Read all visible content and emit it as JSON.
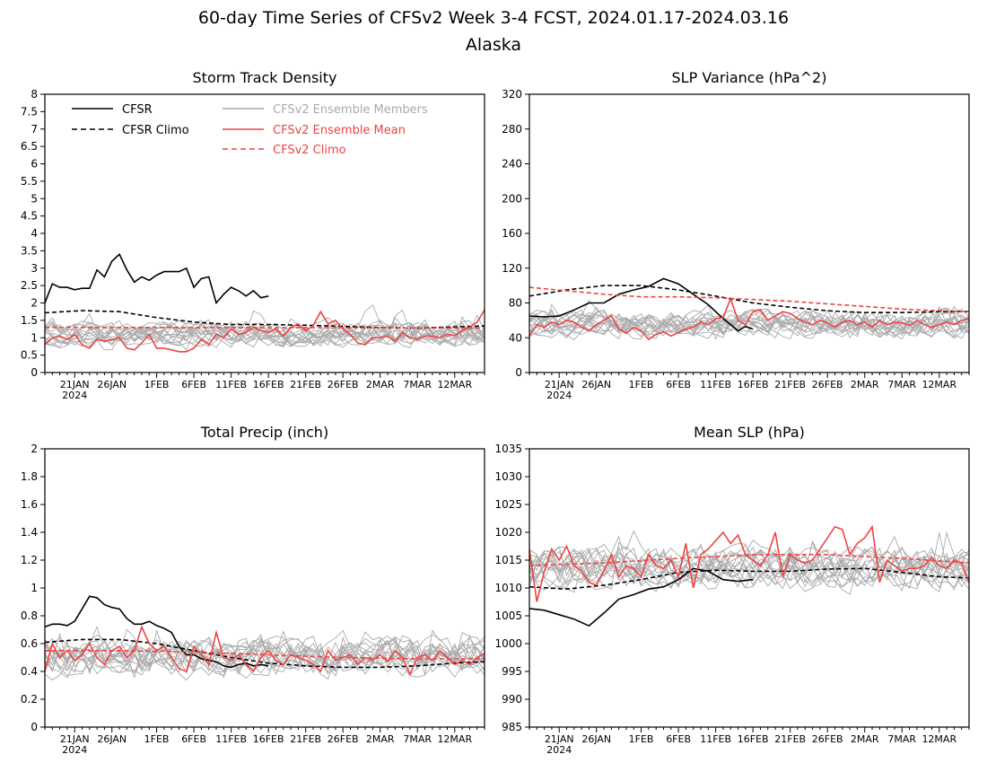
{
  "page": {
    "title": "60-day Time Series of CFSv2 Week 3-4 FCST, 2024.01.17-2024.03.16",
    "subtitle": "Alaska"
  },
  "colors": {
    "cfsr": "#000000",
    "ens_member": "#aaaaaa",
    "ens_mean": "#ee4444",
    "cfsv2_climo": "#ee4444"
  },
  "legend": [
    {
      "label": "CFSR",
      "style": "solid",
      "color": "#000000"
    },
    {
      "label": "CFSR Climo",
      "style": "dashed",
      "color": "#000000"
    },
    {
      "label": "CFSv2 Ensemble Members",
      "style": "solid",
      "color": "#aaaaaa"
    },
    {
      "label": "CFSv2 Ensemble Mean",
      "style": "solid",
      "color": "#ee4444"
    },
    {
      "label": "CFSv2 Climo",
      "style": "dashed",
      "color": "#ee4444"
    }
  ],
  "x_ticks": {
    "labels": [
      "21JAN",
      "26JAN",
      "1FEB",
      "6FEB",
      "11FEB",
      "16FEB",
      "21FEB",
      "26FEB",
      "2MAR",
      "7MAR",
      "12MAR"
    ],
    "days": [
      4,
      9,
      15,
      20,
      25,
      30,
      35,
      40,
      45,
      50,
      55
    ],
    "year_label": "2024"
  },
  "chart_data": [
    {
      "type": "line",
      "title": "Storm Track Density",
      "ylim": [
        0,
        8
      ],
      "yticks": [
        "0",
        "0.5",
        "1",
        "1.5",
        "2",
        "2.5",
        "3",
        "3.5",
        "4",
        "4.5",
        "5",
        "5.5",
        "6",
        "6.5",
        "7",
        "7.5",
        "8"
      ],
      "member_band": {
        "center": 1.1,
        "spread": 0.5,
        "ens_count": 16
      },
      "series": [
        {
          "name": "CFSR",
          "style": "solid",
          "color": "#000000",
          "x": [
            0,
            1,
            2,
            3,
            4,
            5,
            6,
            7,
            8,
            9,
            10,
            11,
            12,
            13,
            14,
            15,
            16,
            17,
            18,
            19,
            20,
            21,
            22,
            23,
            24,
            25,
            26,
            27,
            28,
            29,
            30
          ],
          "values": [
            2.0,
            2.55,
            2.45,
            2.45,
            2.38,
            2.42,
            2.42,
            2.95,
            2.75,
            3.2,
            3.4,
            2.95,
            2.6,
            2.75,
            2.65,
            2.8,
            2.9,
            2.9,
            2.9,
            3.0,
            2.45,
            2.7,
            2.75,
            2.0,
            2.25,
            2.45,
            2.35,
            2.2,
            2.35,
            2.15,
            2.2
          ]
        },
        {
          "name": "CFSR Climo",
          "style": "dashed",
          "color": "#000000",
          "x": [
            0,
            5,
            10,
            15,
            20,
            25,
            30,
            35,
            40,
            45,
            50,
            55,
            59
          ],
          "values": [
            1.72,
            1.78,
            1.75,
            1.58,
            1.45,
            1.38,
            1.38,
            1.36,
            1.33,
            1.29,
            1.28,
            1.31,
            1.34
          ]
        },
        {
          "name": "CFSv2 Ensemble Mean",
          "style": "solid",
          "color": "#ee4444",
          "x": [
            0,
            1,
            2,
            3,
            4,
            5,
            6,
            7,
            8,
            9,
            10,
            11,
            12,
            13,
            14,
            15,
            16,
            17,
            18,
            19,
            20,
            21,
            22,
            23,
            24,
            25,
            26,
            27,
            28,
            29,
            30,
            31,
            32,
            33,
            34,
            35,
            36,
            37,
            38,
            39,
            40,
            41,
            42,
            43,
            44,
            45,
            46,
            47,
            48,
            49,
            50,
            51,
            52,
            53,
            54,
            55,
            56,
            57,
            58,
            59
          ],
          "values": [
            0.8,
            1.0,
            1.05,
            0.95,
            1.1,
            0.8,
            0.7,
            0.95,
            0.9,
            0.95,
            1.0,
            0.7,
            0.65,
            0.85,
            1.1,
            0.7,
            0.7,
            0.65,
            0.6,
            0.6,
            0.7,
            0.95,
            0.8,
            1.1,
            1.0,
            1.25,
            1.1,
            1.15,
            1.3,
            1.2,
            1.15,
            1.25,
            1.05,
            1.3,
            1.4,
            1.2,
            1.35,
            1.75,
            1.4,
            1.5,
            1.25,
            1.1,
            0.85,
            0.8,
            1.0,
            1.0,
            1.05,
            0.9,
            1.15,
            1.0,
            0.95,
            1.05,
            1.05,
            1.0,
            1.1,
            1.05,
            1.2,
            1.3,
            1.45,
            1.8
          ]
        },
        {
          "name": "CFSv2 Climo",
          "style": "dashed",
          "color": "#ee4444",
          "x": [
            0,
            59
          ],
          "values": [
            1.3,
            1.28
          ]
        }
      ]
    },
    {
      "type": "line",
      "title": "SLP Variance (hPa^2)",
      "ylim": [
        0,
        320
      ],
      "yticks": [
        "0",
        "40",
        "80",
        "120",
        "160",
        "200",
        "240",
        "280",
        "320"
      ],
      "member_band": {
        "center": 55,
        "spread": 22,
        "ens_count": 16
      },
      "series": [
        {
          "name": "CFSR",
          "style": "solid",
          "color": "#000000",
          "x": [
            0,
            2,
            4,
            6,
            8,
            10,
            12,
            14,
            16,
            18,
            20,
            22,
            24,
            26,
            28,
            29,
            30
          ],
          "values": [
            65,
            64,
            65,
            72,
            80,
            80,
            90,
            95,
            99,
            108,
            102,
            90,
            78,
            62,
            48,
            53,
            50
          ]
        },
        {
          "name": "CFSR Climo",
          "style": "dashed",
          "color": "#000000",
          "x": [
            0,
            5,
            10,
            15,
            20,
            25,
            30,
            35,
            40,
            45,
            50,
            55,
            59
          ],
          "values": [
            88,
            95,
            100,
            100,
            95,
            88,
            80,
            75,
            71,
            69,
            69,
            70,
            70
          ]
        },
        {
          "name": "CFSv2 Ensemble Mean",
          "style": "solid",
          "color": "#ee4444",
          "x": [
            0,
            1,
            2,
            3,
            4,
            5,
            6,
            7,
            8,
            9,
            10,
            11,
            12,
            13,
            14,
            15,
            16,
            17,
            18,
            19,
            20,
            21,
            22,
            23,
            24,
            25,
            26,
            27,
            28,
            29,
            30,
            31,
            32,
            33,
            34,
            35,
            36,
            37,
            38,
            39,
            40,
            41,
            42,
            43,
            44,
            45,
            46,
            47,
            48,
            49,
            50,
            51,
            52,
            53,
            54,
            55,
            56,
            57,
            58,
            59
          ],
          "values": [
            42,
            55,
            52,
            58,
            55,
            60,
            58,
            52,
            48,
            55,
            60,
            65,
            50,
            45,
            52,
            48,
            38,
            44,
            47,
            42,
            46,
            50,
            52,
            58,
            55,
            62,
            63,
            85,
            60,
            55,
            70,
            72,
            60,
            65,
            70,
            68,
            62,
            58,
            55,
            60,
            57,
            52,
            58,
            60,
            55,
            58,
            52,
            60,
            55,
            58,
            57,
            54,
            60,
            55,
            52,
            55,
            58,
            55,
            60,
            62
          ]
        },
        {
          "name": "CFSv2 Climo",
          "style": "dashed",
          "color": "#ee4444",
          "x": [
            0,
            5,
            10,
            15,
            20,
            25,
            30,
            35,
            40,
            45,
            50,
            55,
            59
          ],
          "values": [
            98,
            94,
            90,
            87,
            87,
            86,
            84,
            82,
            79,
            76,
            73,
            71,
            70
          ]
        }
      ]
    },
    {
      "type": "line",
      "title": "Total Precip (inch)",
      "ylim": [
        0,
        2
      ],
      "yticks": [
        "0",
        "0.2",
        "0.4",
        "0.6",
        "0.8",
        "1",
        "1.2",
        "1.4",
        "1.6",
        "1.8",
        "2"
      ],
      "member_band": {
        "center": 0.5,
        "spread": 0.2,
        "ens_count": 16
      },
      "series": [
        {
          "name": "CFSR",
          "style": "solid",
          "color": "#000000",
          "x": [
            0,
            1,
            2,
            3,
            4,
            5,
            6,
            7,
            8,
            9,
            10,
            11,
            12,
            13,
            14,
            15,
            16,
            17,
            18,
            19,
            20,
            21,
            22,
            23,
            24,
            25,
            26,
            27,
            28,
            29,
            30
          ],
          "values": [
            0.72,
            0.74,
            0.74,
            0.73,
            0.76,
            0.85,
            0.94,
            0.93,
            0.88,
            0.86,
            0.85,
            0.78,
            0.74,
            0.74,
            0.76,
            0.73,
            0.71,
            0.68,
            0.58,
            0.52,
            0.52,
            0.49,
            0.48,
            0.47,
            0.44,
            0.43,
            0.45,
            0.46,
            0.44,
            0.45,
            0.44
          ]
        },
        {
          "name": "CFSR Climo",
          "style": "dashed",
          "color": "#000000",
          "x": [
            0,
            5,
            10,
            15,
            20,
            25,
            30,
            35,
            40,
            45,
            50,
            55,
            59
          ],
          "values": [
            0.61,
            0.63,
            0.63,
            0.6,
            0.55,
            0.5,
            0.46,
            0.44,
            0.43,
            0.43,
            0.44,
            0.46,
            0.47
          ]
        },
        {
          "name": "CFSv2 Ensemble Mean",
          "style": "solid",
          "color": "#ee4444",
          "x": [
            0,
            1,
            2,
            3,
            4,
            5,
            6,
            7,
            8,
            9,
            10,
            11,
            12,
            13,
            14,
            15,
            16,
            17,
            18,
            19,
            20,
            21,
            22,
            23,
            24,
            25,
            26,
            27,
            28,
            29,
            30,
            31,
            32,
            33,
            34,
            35,
            36,
            37,
            38,
            39,
            40,
            41,
            42,
            43,
            44,
            45,
            46,
            47,
            48,
            49,
            50,
            51,
            52,
            53,
            54,
            55,
            56,
            57,
            58,
            59
          ],
          "values": [
            0.4,
            0.6,
            0.5,
            0.55,
            0.48,
            0.52,
            0.6,
            0.5,
            0.45,
            0.55,
            0.58,
            0.5,
            0.55,
            0.72,
            0.6,
            0.55,
            0.58,
            0.5,
            0.42,
            0.4,
            0.58,
            0.52,
            0.45,
            0.68,
            0.5,
            0.48,
            0.52,
            0.45,
            0.4,
            0.5,
            0.55,
            0.48,
            0.45,
            0.52,
            0.5,
            0.48,
            0.45,
            0.4,
            0.55,
            0.48,
            0.5,
            0.52,
            0.45,
            0.5,
            0.48,
            0.52,
            0.47,
            0.55,
            0.5,
            0.38,
            0.5,
            0.52,
            0.48,
            0.55,
            0.5,
            0.45,
            0.48,
            0.45,
            0.5,
            0.53
          ]
        },
        {
          "name": "CFSv2 Climo",
          "style": "dashed",
          "color": "#ee4444",
          "x": [
            0,
            10,
            20,
            30,
            40,
            50,
            59
          ],
          "values": [
            0.55,
            0.55,
            0.54,
            0.52,
            0.5,
            0.49,
            0.49
          ]
        }
      ]
    },
    {
      "type": "line",
      "title": "Mean SLP (hPa)",
      "ylim": [
        985,
        1035
      ],
      "yticks": [
        "985",
        "990",
        "995",
        "1000",
        "1005",
        "1010",
        "1015",
        "1020",
        "1025",
        "1030",
        "1035"
      ],
      "member_band": {
        "center": 1013.5,
        "spread": 5.5,
        "ens_count": 16
      },
      "series": [
        {
          "name": "CFSR",
          "style": "solid",
          "color": "#000000",
          "x": [
            0,
            2,
            4,
            6,
            8,
            10,
            12,
            14,
            16,
            18,
            20,
            22,
            24,
            26,
            28,
            30
          ],
          "values": [
            1006.3,
            1006.0,
            1005.2,
            1004.4,
            1003.2,
            1005.5,
            1008.0,
            1008.8,
            1009.8,
            1010.2,
            1011.5,
            1013.5,
            1013.0,
            1011.5,
            1011.2,
            1011.5
          ]
        },
        {
          "name": "CFSR Climo",
          "style": "dashed",
          "color": "#000000",
          "x": [
            0,
            5,
            10,
            15,
            20,
            25,
            30,
            35,
            40,
            45,
            50,
            55,
            59
          ],
          "values": [
            1010.2,
            1009.8,
            1010.5,
            1011.5,
            1012.8,
            1013.2,
            1013.0,
            1013.0,
            1013.4,
            1013.5,
            1012.8,
            1012.0,
            1011.8
          ]
        },
        {
          "name": "CFSv2 Ensemble Mean",
          "style": "solid",
          "color": "#ee4444",
          "x": [
            0,
            1,
            2,
            3,
            4,
            5,
            6,
            7,
            8,
            9,
            10,
            11,
            12,
            13,
            14,
            15,
            16,
            17,
            18,
            19,
            20,
            21,
            22,
            23,
            24,
            25,
            26,
            27,
            28,
            29,
            30,
            31,
            32,
            33,
            34,
            35,
            36,
            37,
            38,
            39,
            40,
            41,
            42,
            43,
            44,
            45,
            46,
            47,
            48,
            49,
            50,
            51,
            52,
            53,
            54,
            55,
            56,
            57,
            58,
            59
          ],
          "values": [
            1017.0,
            1007.5,
            1013.0,
            1017.0,
            1015.0,
            1017.5,
            1014.0,
            1013.0,
            1011.0,
            1010.5,
            1013.0,
            1016.0,
            1012.0,
            1014.0,
            1013.5,
            1012.0,
            1016.0,
            1014.0,
            1013.5,
            1015.0,
            1012.0,
            1018.0,
            1010.0,
            1016.0,
            1017.0,
            1018.5,
            1020.0,
            1018.0,
            1019.5,
            1016.0,
            1015.0,
            1014.0,
            1016.0,
            1020.0,
            1012.0,
            1016.0,
            1015.0,
            1014.5,
            1015.0,
            1017.0,
            1019.0,
            1021.0,
            1020.5,
            1016.0,
            1018.0,
            1019.0,
            1021.0,
            1011.0,
            1015.0,
            1014.0,
            1013.0,
            1013.5,
            1013.5,
            1014.0,
            1015.5,
            1014.0,
            1013.5,
            1015.0,
            1014.5,
            1011.0
          ]
        },
        {
          "name": "CFSv2 Climo",
          "style": "dashed",
          "color": "#ee4444",
          "x": [
            0,
            10,
            20,
            30,
            40,
            50,
            59
          ],
          "values": [
            1014.0,
            1014.5,
            1015.3,
            1016.0,
            1016.0,
            1015.3,
            1014.5
          ]
        }
      ]
    }
  ]
}
